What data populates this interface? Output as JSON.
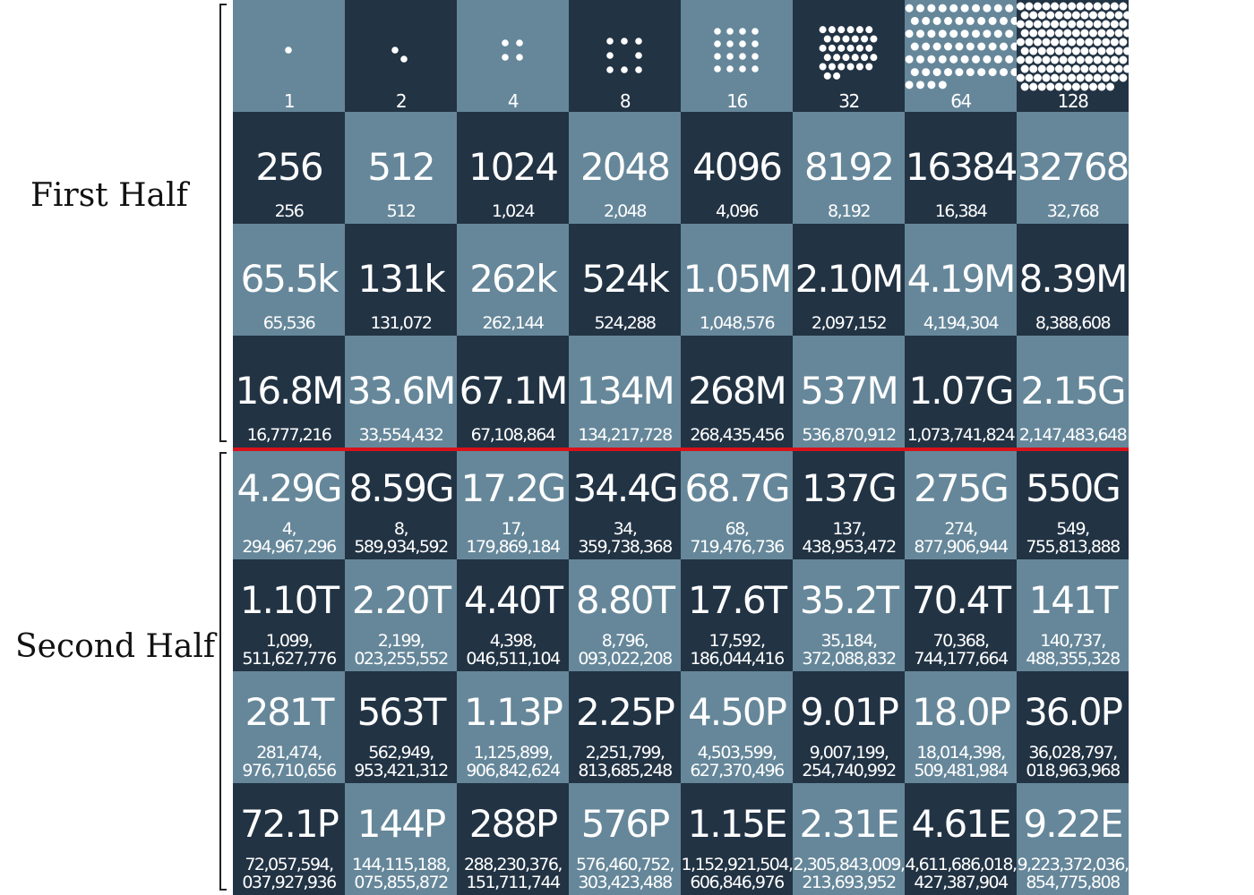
{
  "labels": {
    "first_half": "First Half",
    "second_half": "Second Half"
  },
  "colors": {
    "light_square": "#66879a",
    "dark_square": "#223344",
    "divider": "#d8121b"
  },
  "board": {
    "rows": [
      [
        {
          "main": "",
          "exact": "1",
          "dots": 1
        },
        {
          "main": "",
          "exact": "2",
          "dots": 2
        },
        {
          "main": "",
          "exact": "4",
          "dots": 4
        },
        {
          "main": "",
          "exact": "8",
          "dots": 8
        },
        {
          "main": "",
          "exact": "16",
          "dots": 16
        },
        {
          "main": "",
          "exact": "32",
          "dots": 32
        },
        {
          "main": "",
          "exact": "64",
          "dots": 64
        },
        {
          "main": "",
          "exact": "128",
          "dots": 128
        }
      ],
      [
        {
          "main": "256",
          "exact": "256"
        },
        {
          "main": "512",
          "exact": "512"
        },
        {
          "main": "1024",
          "exact": "1,024"
        },
        {
          "main": "2048",
          "exact": "2,048"
        },
        {
          "main": "4096",
          "exact": "4,096"
        },
        {
          "main": "8192",
          "exact": "8,192"
        },
        {
          "main": "16384",
          "exact": "16,384"
        },
        {
          "main": "32768",
          "exact": "32,768"
        }
      ],
      [
        {
          "main": "65.5k",
          "exact": "65,536"
        },
        {
          "main": "131k",
          "exact": "131,072"
        },
        {
          "main": "262k",
          "exact": "262,144"
        },
        {
          "main": "524k",
          "exact": "524,288"
        },
        {
          "main": "1.05M",
          "exact": "1,048,576"
        },
        {
          "main": "2.10M",
          "exact": "2,097,152"
        },
        {
          "main": "4.19M",
          "exact": "4,194,304"
        },
        {
          "main": "8.39M",
          "exact": "8,388,608"
        }
      ],
      [
        {
          "main": "16.8M",
          "exact": "16,777,216"
        },
        {
          "main": "33.6M",
          "exact": "33,554,432"
        },
        {
          "main": "67.1M",
          "exact": "67,108,864"
        },
        {
          "main": "134M",
          "exact": "134,217,728"
        },
        {
          "main": "268M",
          "exact": "268,435,456"
        },
        {
          "main": "537M",
          "exact": "536,870,912"
        },
        {
          "main": "1.07G",
          "exact": "1,073,741,824"
        },
        {
          "main": "2.15G",
          "exact": "2,147,483,648"
        }
      ],
      [
        {
          "main": "4.29G",
          "exact": "4,\n294,967,296"
        },
        {
          "main": "8.59G",
          "exact": "8,\n589,934,592"
        },
        {
          "main": "17.2G",
          "exact": "17,\n179,869,184"
        },
        {
          "main": "34.4G",
          "exact": "34,\n359,738,368"
        },
        {
          "main": "68.7G",
          "exact": "68,\n719,476,736"
        },
        {
          "main": "137G",
          "exact": "137,\n438,953,472"
        },
        {
          "main": "275G",
          "exact": "274,\n877,906,944"
        },
        {
          "main": "550G",
          "exact": "549,\n755,813,888"
        }
      ],
      [
        {
          "main": "1.10T",
          "exact": "1,099,\n511,627,776"
        },
        {
          "main": "2.20T",
          "exact": "2,199,\n023,255,552"
        },
        {
          "main": "4.40T",
          "exact": "4,398,\n046,511,104"
        },
        {
          "main": "8.80T",
          "exact": "8,796,\n093,022,208"
        },
        {
          "main": "17.6T",
          "exact": "17,592,\n186,044,416"
        },
        {
          "main": "35.2T",
          "exact": "35,184,\n372,088,832"
        },
        {
          "main": "70.4T",
          "exact": "70,368,\n744,177,664"
        },
        {
          "main": "141T",
          "exact": "140,737,\n488,355,328"
        }
      ],
      [
        {
          "main": "281T",
          "exact": "281,474,\n976,710,656"
        },
        {
          "main": "563T",
          "exact": "562,949,\n953,421,312"
        },
        {
          "main": "1.13P",
          "exact": "1,125,899,\n906,842,624"
        },
        {
          "main": "2.25P",
          "exact": "2,251,799,\n813,685,248"
        },
        {
          "main": "4.50P",
          "exact": "4,503,599,\n627,370,496"
        },
        {
          "main": "9.01P",
          "exact": "9,007,199,\n254,740,992"
        },
        {
          "main": "18.0P",
          "exact": "18,014,398,\n509,481,984"
        },
        {
          "main": "36.0P",
          "exact": "36,028,797,\n018,963,968"
        }
      ],
      [
        {
          "main": "72.1P",
          "exact": "72,057,594,\n037,927,936"
        },
        {
          "main": "144P",
          "exact": "144,115,188,\n075,855,872"
        },
        {
          "main": "288P",
          "exact": "288,230,376,\n151,711,744"
        },
        {
          "main": "576P",
          "exact": "576,460,752,\n303,423,488"
        },
        {
          "main": "1.15E",
          "exact": "1,152,921,504,\n606,846,976"
        },
        {
          "main": "2.31E",
          "exact": "2,305,843,009,\n213,693,952"
        },
        {
          "main": "4.61E",
          "exact": "4,611,686,018,\n427,387,904"
        },
        {
          "main": "9.22E",
          "exact": "9,223,372,036,\n854,775,808"
        }
      ]
    ]
  }
}
